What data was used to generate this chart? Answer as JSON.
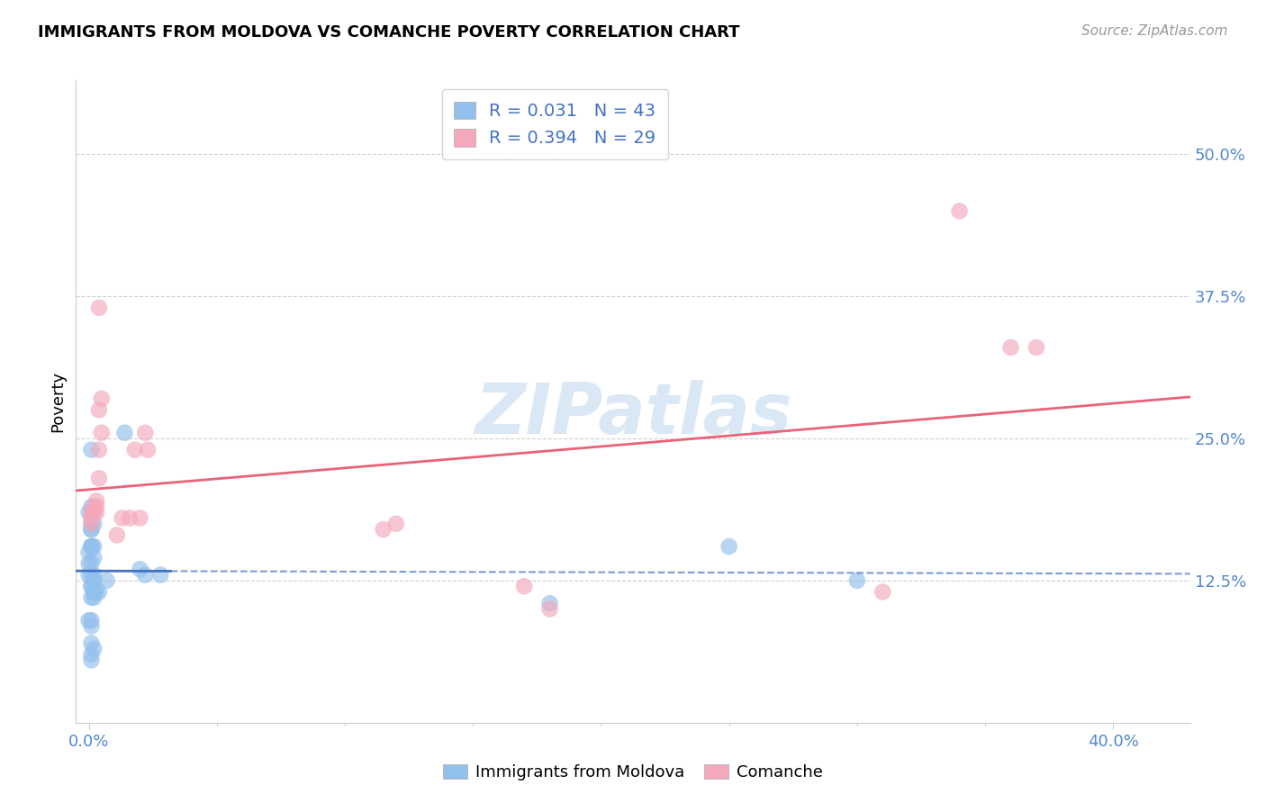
{
  "title": "IMMIGRANTS FROM MOLDOVA VS COMANCHE POVERTY CORRELATION CHART",
  "source": "Source: ZipAtlas.com",
  "xlabel_ticks": [
    "0.0%",
    "40.0%"
  ],
  "xlabel_vals": [
    0.0,
    0.4
  ],
  "ylabel_ticks": [
    "50.0%",
    "37.5%",
    "25.0%",
    "12.5%"
  ],
  "ylabel_vals": [
    0.5,
    0.375,
    0.25,
    0.125
  ],
  "xlim": [
    -0.005,
    0.43
  ],
  "ylim": [
    0.0,
    0.565
  ],
  "blue_R": 0.031,
  "blue_N": 43,
  "pink_R": 0.394,
  "pink_N": 29,
  "blue_color": "#92C0EC",
  "pink_color": "#F4A8BC",
  "blue_line_color": "#4472C4",
  "pink_line_color": "#E8637A",
  "watermark": "ZIPatlas",
  "legend_label_blue": "Immigrants from Moldova",
  "legend_label_pink": "Comanche",
  "blue_x": [
    0.001,
    0.001,
    0.002,
    0.001,
    0.0,
    0.001,
    0.001,
    0.0,
    0.001,
    0.002,
    0.001,
    0.0,
    0.001,
    0.002,
    0.001,
    0.002,
    0.002,
    0.001,
    0.0,
    0.001,
    0.002,
    0.003,
    0.002,
    0.002,
    0.001,
    0.0,
    0.001,
    0.001,
    0.002,
    0.001,
    0.001,
    0.014,
    0.02,
    0.028,
    0.022,
    0.007,
    0.004,
    0.002,
    0.001,
    0.001,
    0.3,
    0.25,
    0.18
  ],
  "blue_y": [
    0.24,
    0.19,
    0.175,
    0.175,
    0.185,
    0.17,
    0.155,
    0.15,
    0.155,
    0.155,
    0.155,
    0.14,
    0.14,
    0.145,
    0.12,
    0.125,
    0.125,
    0.13,
    0.13,
    0.12,
    0.115,
    0.115,
    0.13,
    0.115,
    0.09,
    0.09,
    0.085,
    0.07,
    0.065,
    0.055,
    0.06,
    0.255,
    0.135,
    0.13,
    0.13,
    0.125,
    0.115,
    0.11,
    0.17,
    0.11,
    0.125,
    0.155,
    0.105
  ],
  "pink_x": [
    0.001,
    0.001,
    0.001,
    0.002,
    0.002,
    0.003,
    0.003,
    0.003,
    0.004,
    0.004,
    0.005,
    0.004,
    0.005,
    0.004,
    0.013,
    0.011,
    0.016,
    0.023,
    0.02,
    0.018,
    0.022,
    0.115,
    0.12,
    0.17,
    0.18,
    0.31,
    0.34,
    0.36,
    0.37
  ],
  "pink_y": [
    0.175,
    0.185,
    0.18,
    0.185,
    0.19,
    0.185,
    0.19,
    0.195,
    0.215,
    0.24,
    0.255,
    0.275,
    0.285,
    0.365,
    0.18,
    0.165,
    0.18,
    0.24,
    0.18,
    0.24,
    0.255,
    0.17,
    0.175,
    0.12,
    0.1,
    0.115,
    0.45,
    0.33,
    0.33
  ],
  "grid_color": "#D0D0D0",
  "grid_style": "--",
  "spine_color": "#CCCCCC"
}
